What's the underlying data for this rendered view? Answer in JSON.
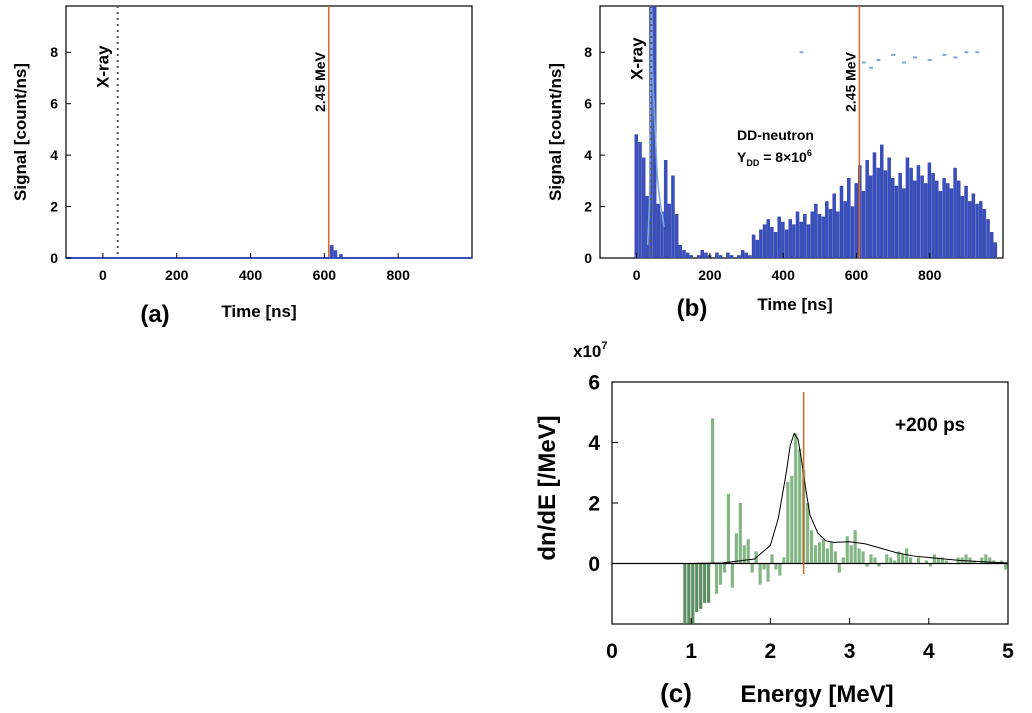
{
  "colors": {
    "bar_blue": "#3a4fbf",
    "bar_blue_light": "#7fa8e0",
    "bar_green": "#6fa870",
    "bar_green_dark": "#3f7a45",
    "marker_orange": "#d9662a",
    "xray_label": "#3d3d8c"
  },
  "chart_data": [
    {
      "type": "bar",
      "panel": "(a)",
      "xlabel": "Time [ns]",
      "ylabel": "Signal [count/ns]",
      "xlim": [
        -100,
        1000
      ],
      "ylim": [
        0,
        9.8
      ],
      "x_ticks": [
        "0",
        "200",
        "400",
        "600",
        "800"
      ],
      "y_ticks": [
        "0",
        "2",
        "4",
        "6",
        "8"
      ],
      "annotations": {
        "xray": "X-ray",
        "energy": "2.45 MeV"
      },
      "xray_time": 40,
      "energy_time": 612,
      "bins": [
        {
          "x": 620,
          "y": 0.5
        },
        {
          "x": 630,
          "y": 0.3
        },
        {
          "x": 645,
          "y": 0.15
        }
      ]
    },
    {
      "type": "bar",
      "panel": "(b)",
      "xlabel": "Time [ns]",
      "ylabel": "Signal [count/ns]",
      "xlim": [
        -100,
        1000
      ],
      "ylim": [
        0,
        9.8
      ],
      "x_ticks": [
        "0",
        "200",
        "400",
        "600",
        "800"
      ],
      "y_ticks": [
        "0",
        "2",
        "4",
        "6",
        "8"
      ],
      "annotations": {
        "xray": "X-ray",
        "energy": "2.45 MeV",
        "dd_label": "DD-neutron",
        "yield_main": "Y",
        "yield_sub": "DD",
        "yield_value": " = 8×10",
        "yield_exp": "6"
      },
      "xray_time": 40,
      "energy_time": 608,
      "bin_width": 10,
      "bins_x_start": 0,
      "values": [
        4.8,
        4.5,
        3.9,
        2.4,
        9.8,
        9.8,
        2.1,
        1.8,
        3.8,
        2.1,
        3.2,
        1.7,
        0.5,
        0.3,
        0.2,
        0.1,
        0.0,
        0.1,
        0.3,
        0.2,
        0.1,
        0.0,
        0.2,
        0.1,
        0.0,
        0.2,
        0.1,
        0.0,
        0.1,
        0.3,
        0.2,
        0.1,
        0.9,
        0.7,
        1.1,
        1.3,
        1.5,
        1.2,
        1.0,
        1.6,
        1.4,
        1.1,
        1.5,
        1.3,
        1.8,
        1.4,
        1.7,
        1.3,
        1.8,
        2.1,
        1.7,
        1.6,
        2.2,
        1.9,
        2.5,
        1.8,
        2.8,
        2.2,
        3.1,
        2.0,
        2.9,
        3.6,
        2.6,
        3.8,
        3.2,
        4.1,
        3.5,
        4.4,
        3.4,
        3.9,
        3.1,
        2.8,
        3.3,
        2.7,
        3.9,
        3.5,
        3.0,
        3.6,
        3.2,
        2.9,
        3.7,
        3.3,
        3.0,
        2.6,
        3.1,
        2.9,
        2.7,
        3.5,
        3.0,
        2.4,
        2.8,
        2.2,
        2.5,
        2.1,
        2.2,
        1.9,
        1.5,
        1.0,
        0.6
      ],
      "xray_trace_x": [
        30,
        35,
        38,
        40,
        42,
        45,
        48,
        52,
        56,
        62,
        68,
        75
      ],
      "xray_trace_y": [
        0.5,
        2.0,
        5.5,
        9.8,
        8.0,
        6.5,
        5.8,
        4.6,
        3.2,
        2.4,
        1.8,
        1.2
      ],
      "faint_dots": [
        {
          "x": 450,
          "y": 8.0
        },
        {
          "x": 620,
          "y": 7.6
        },
        {
          "x": 640,
          "y": 7.4
        },
        {
          "x": 660,
          "y": 7.7
        },
        {
          "x": 700,
          "y": 7.9
        },
        {
          "x": 730,
          "y": 7.6
        },
        {
          "x": 760,
          "y": 7.8
        },
        {
          "x": 800,
          "y": 7.7
        },
        {
          "x": 840,
          "y": 7.9
        },
        {
          "x": 870,
          "y": 7.8
        },
        {
          "x": 900,
          "y": 8.0
        },
        {
          "x": 930,
          "y": 8.0
        }
      ]
    },
    {
      "type": "bar",
      "panel": "(c)",
      "xlabel": "Energy [MeV]",
      "ylabel": "dn/dE  [/MeV]",
      "scale_label": "x10",
      "scale_exp": "7",
      "xlim": [
        0,
        5
      ],
      "ylim": [
        -2.0,
        6
      ],
      "x_ticks": [
        "0",
        "1",
        "2",
        "3",
        "4",
        "5"
      ],
      "y_ticks": [
        "0",
        "2",
        "4",
        "6"
      ],
      "annotations": {
        "offset": "+200 ps"
      },
      "energy_line": 2.42,
      "bin_width": 0.05,
      "bins_x_start": 0.9,
      "values": [
        -2.0,
        -2.0,
        -2.0,
        -1.6,
        -1.5,
        -1.3,
        -1.3,
        4.8,
        -1.0,
        -0.7,
        -0.3,
        2.3,
        -0.8,
        1.0,
        2.0,
        0.6,
        0.8,
        -0.3,
        0.4,
        -0.7,
        -0.2,
        -0.6,
        0.3,
        -0.2,
        -0.4,
        0.2,
        2.7,
        2.9,
        4.3,
        3.8,
        3.1,
        2.0,
        1.1,
        0.6,
        0.7,
        0.8,
        0.5,
        0.7,
        0.4,
        -0.3,
        0.2,
        0.9,
        0.6,
        1.1,
        0.5,
        0.4,
        -0.1,
        0.3,
        0.2,
        -0.1,
        0.0,
        0.3,
        0.2,
        0.1,
        0.4,
        0.3,
        0.5,
        0.2,
        0.0,
        0.2,
        0.0,
        0.1,
        -0.1,
        0.3,
        0.2,
        0.2,
        0.1,
        0.0,
        0.0,
        0.2,
        0.2,
        0.3,
        0.2,
        0.1,
        0.0,
        0.2,
        0.3,
        0.2,
        0.1,
        0.0,
        0.1,
        -0.2
      ],
      "fit_x": [
        1.0,
        1.4,
        1.8,
        2.0,
        2.1,
        2.2,
        2.25,
        2.3,
        2.35,
        2.4,
        2.45,
        2.5,
        2.6,
        2.7,
        2.8,
        3.0,
        3.2,
        3.4,
        3.6,
        3.8,
        4.0,
        4.2,
        4.4,
        4.6,
        4.8,
        5.0
      ],
      "fit_y": [
        0.0,
        0.02,
        0.15,
        0.6,
        1.5,
        3.0,
        3.9,
        4.3,
        4.1,
        3.3,
        2.4,
        1.6,
        1.0,
        0.75,
        0.7,
        0.72,
        0.65,
        0.5,
        0.35,
        0.25,
        0.2,
        0.15,
        0.1,
        0.07,
        0.04,
        0.02
      ]
    }
  ]
}
